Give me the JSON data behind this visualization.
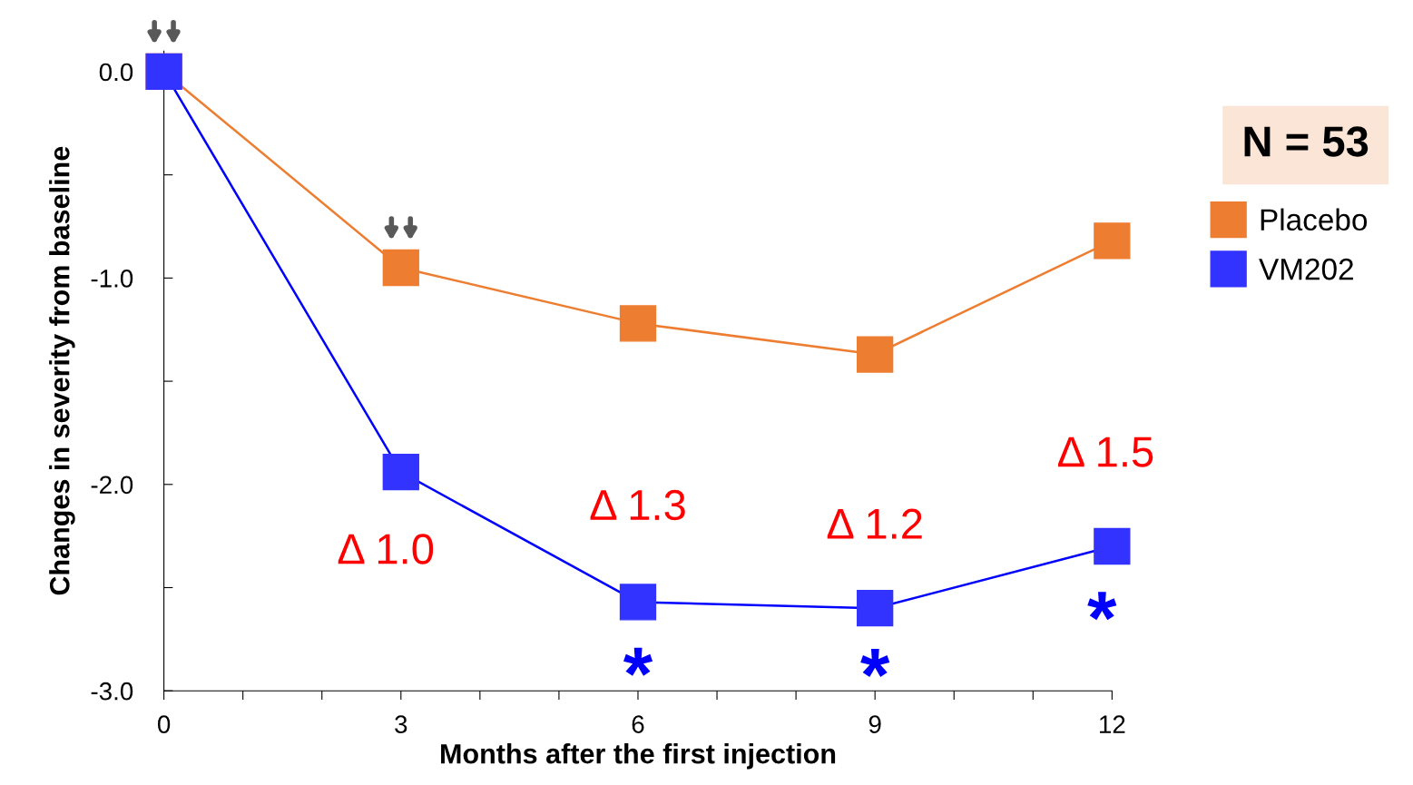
{
  "chart_data": {
    "type": "line",
    "xlabel": "Months after the first injection",
    "ylabel": "Changes in severity from baseline",
    "x": [
      0,
      3,
      6,
      9,
      12
    ],
    "series": [
      {
        "name": "Placebo",
        "color": "#ed7d31",
        "values": [
          0,
          -0.95,
          -1.22,
          -1.37,
          -0.82
        ]
      },
      {
        "name": "VM202",
        "color": "#3333ff",
        "values": [
          0,
          -1.94,
          -2.57,
          -2.6,
          -2.3
        ]
      }
    ],
    "xlim": [
      0,
      12
    ],
    "ylim": [
      -3,
      0.1
    ],
    "xticks": [
      0,
      {
        "value": 1,
        "label": null
      },
      {
        "value": 2,
        "label": null
      },
      3,
      {
        "value": 4,
        "label": null
      },
      {
        "value": 5,
        "label": null
      },
      6,
      {
        "value": 7,
        "label": null
      },
      {
        "value": 8,
        "label": null
      },
      9,
      {
        "value": 10,
        "label": null
      },
      {
        "value": 11,
        "label": null
      },
      12
    ],
    "yticks": [
      {
        "value": -3,
        "label": "-3.0"
      },
      {
        "value": -2.5,
        "label": null
      },
      {
        "value": -2,
        "label": "-2.0"
      },
      {
        "value": -1.5,
        "label": null
      },
      {
        "value": -1,
        "label": "-1.0"
      },
      {
        "value": -0.5,
        "label": null
      },
      {
        "value": 0,
        "label": "0.0"
      }
    ],
    "marker": "square",
    "line_style": "solid",
    "grid": false,
    "legend": "right",
    "annotations": [
      {
        "text": "Δ 1.0",
        "x": 3,
        "y": -1.94
      },
      {
        "text": "Δ 1.3",
        "x": 6,
        "y": -2.57
      },
      {
        "text": "Δ 1.2",
        "x": 9,
        "y": -2.6
      },
      {
        "text": "Δ 1.5",
        "x": 12,
        "y": -2.3
      },
      {
        "text": "*",
        "x": 6,
        "y": -2.57
      },
      {
        "text": "*",
        "x": 9,
        "y": -2.6
      },
      {
        "text": "*",
        "x": 12,
        "y": -2.3
      },
      "N = 53"
    ]
  }
}
